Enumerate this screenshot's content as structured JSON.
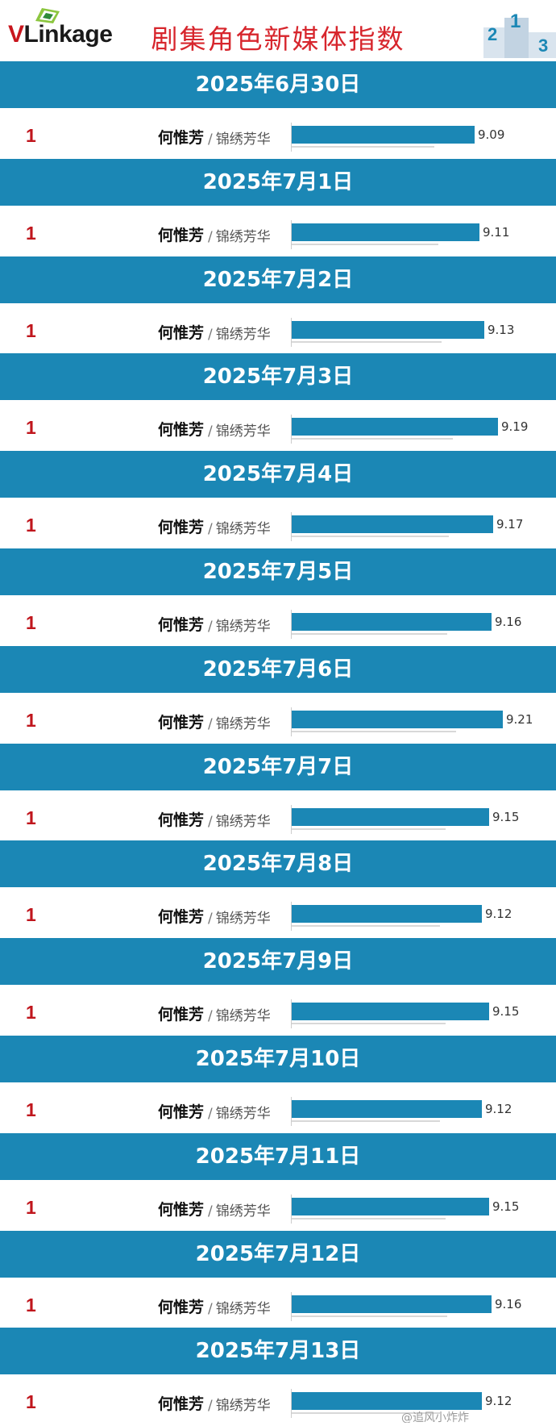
{
  "header": {
    "logo_v": "V",
    "logo_rest": "Linkage",
    "title": "剧集角色新媒体指数",
    "podium_digits": [
      "2",
      "1",
      "3"
    ]
  },
  "watermark": "@追风小炸炸",
  "colors": {
    "band": "#1b87b5",
    "bar": "#1b87b5",
    "rank": "#c0161d",
    "title": "#d7262d"
  },
  "chart_data": {
    "type": "bar",
    "title": "剧集角色新媒体指数",
    "orientation": "horizontal",
    "x_domain": [
      8.3,
      9.21
    ],
    "entries": [
      {
        "date": "2025年6月30日",
        "rank": "1",
        "name": "何惟芳",
        "show": "锦绣芳华",
        "value": 9.09
      },
      {
        "date": "2025年7月1日",
        "rank": "1",
        "name": "何惟芳",
        "show": "锦绣芳华",
        "value": 9.11
      },
      {
        "date": "2025年7月2日",
        "rank": "1",
        "name": "何惟芳",
        "show": "锦绣芳华",
        "value": 9.13
      },
      {
        "date": "2025年7月3日",
        "rank": "1",
        "name": "何惟芳",
        "show": "锦绣芳华",
        "value": 9.19
      },
      {
        "date": "2025年7月4日",
        "rank": "1",
        "name": "何惟芳",
        "show": "锦绣芳华",
        "value": 9.17
      },
      {
        "date": "2025年7月5日",
        "rank": "1",
        "name": "何惟芳",
        "show": "锦绣芳华",
        "value": 9.16
      },
      {
        "date": "2025年7月6日",
        "rank": "1",
        "name": "何惟芳",
        "show": "锦绣芳华",
        "value": 9.21
      },
      {
        "date": "2025年7月7日",
        "rank": "1",
        "name": "何惟芳",
        "show": "锦绣芳华",
        "value": 9.15
      },
      {
        "date": "2025年7月8日",
        "rank": "1",
        "name": "何惟芳",
        "show": "锦绣芳华",
        "value": 9.12
      },
      {
        "date": "2025年7月9日",
        "rank": "1",
        "name": "何惟芳",
        "show": "锦绣芳华",
        "value": 9.15
      },
      {
        "date": "2025年7月10日",
        "rank": "1",
        "name": "何惟芳",
        "show": "锦绣芳华",
        "value": 9.12
      },
      {
        "date": "2025年7月11日",
        "rank": "1",
        "name": "何惟芳",
        "show": "锦绣芳华",
        "value": 9.15
      },
      {
        "date": "2025年7月12日",
        "rank": "1",
        "name": "何惟芳",
        "show": "锦绣芳华",
        "value": 9.16
      },
      {
        "date": "2025年7月13日",
        "rank": "1",
        "name": "何惟芳",
        "show": "锦绣芳华",
        "value": 9.12
      }
    ]
  }
}
